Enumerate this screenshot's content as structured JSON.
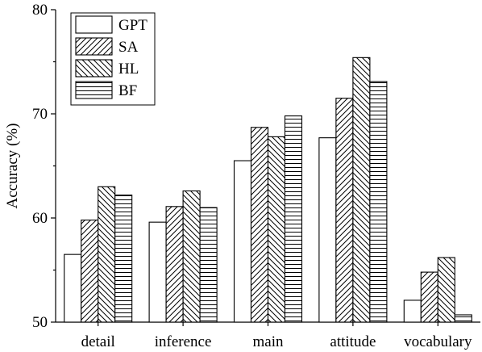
{
  "chart_data": {
    "type": "bar",
    "title": "",
    "xlabel": "",
    "ylabel": "Accuracy (%)",
    "ylim": [
      50,
      80
    ],
    "yticks": [
      50,
      60,
      70,
      80
    ],
    "categories": [
      "detail",
      "inference",
      "main",
      "attitude",
      "vocabulary"
    ],
    "series": [
      {
        "name": "GPT",
        "pattern": "solid-white",
        "values": [
          56.5,
          59.6,
          65.5,
          67.7,
          52.1
        ]
      },
      {
        "name": "SA",
        "pattern": "diagonal-up",
        "values": [
          59.8,
          61.1,
          68.7,
          71.5,
          54.8
        ]
      },
      {
        "name": "HL",
        "pattern": "diagonal-down",
        "values": [
          63.0,
          62.6,
          67.8,
          75.4,
          56.2
        ]
      },
      {
        "name": "BF",
        "pattern": "horizontal-lines",
        "values": [
          62.2,
          61.0,
          69.8,
          73.1,
          50.7
        ]
      }
    ],
    "legend_position": "top-left",
    "grid": false,
    "colors": {
      "stroke": "#000000",
      "fill": "#ffffff"
    }
  }
}
